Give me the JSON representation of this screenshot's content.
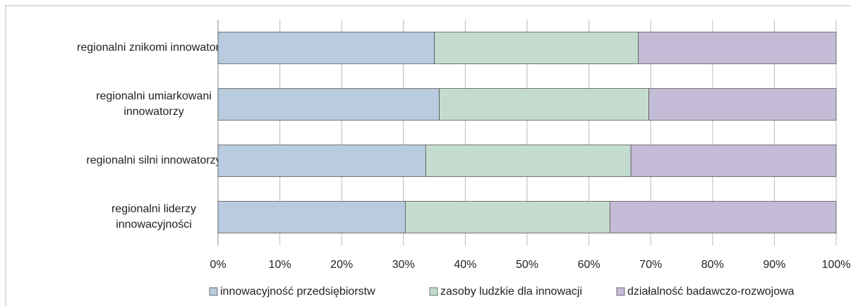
{
  "chart_data": {
    "type": "stacked-barh",
    "categories": [
      "regionalni znikomi innowatorzy",
      "regionalni umiarkowani\ninnowatorzy",
      "regionalni silni innowatorzy",
      "regionalni liderzy\ninnowacyjności"
    ],
    "series": [
      {
        "name": "innowacyjność przedsiębiorstw",
        "color": "#b9cbde",
        "values": [
          35.0,
          35.8,
          33.6,
          30.3
        ]
      },
      {
        "name": "zasoby ludzkie dla innowacji",
        "color": "#c3dccf",
        "values": [
          33.0,
          33.9,
          33.2,
          33.1
        ]
      },
      {
        "name": "działalność badawczo-rozwojowa",
        "color": "#c4bcd7",
        "values": [
          32.0,
          30.3,
          33.2,
          36.6
        ]
      }
    ],
    "xlim": [
      0,
      100
    ],
    "xticks": [
      {
        "value": 0,
        "label": "0%"
      },
      {
        "value": 10,
        "label": "10%"
      },
      {
        "value": 20,
        "label": "20%"
      },
      {
        "value": 30,
        "label": "30%"
      },
      {
        "value": 40,
        "label": "40%"
      },
      {
        "value": 50,
        "label": "50%"
      },
      {
        "value": 60,
        "label": "60%"
      },
      {
        "value": 70,
        "label": "70%"
      },
      {
        "value": 80,
        "label": "80%"
      },
      {
        "value": 90,
        "label": "90%"
      },
      {
        "value": 100,
        "label": "100%"
      }
    ],
    "grid": true,
    "legend": "bottom"
  }
}
